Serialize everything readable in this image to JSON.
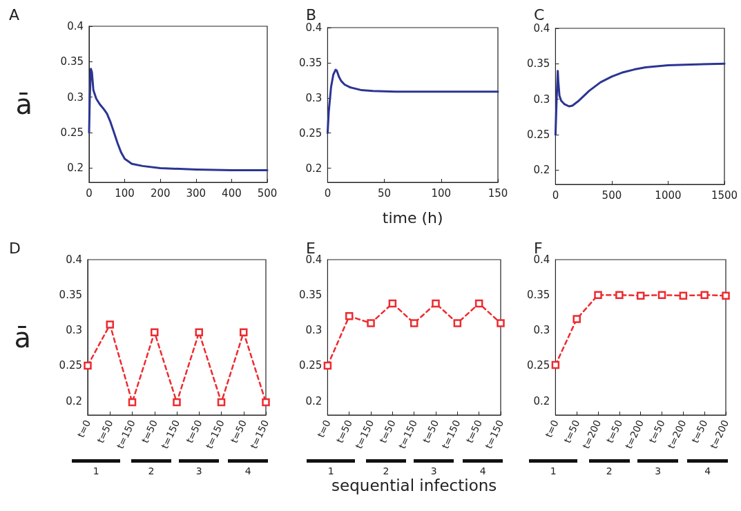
{
  "chart_data": [
    {
      "type": "line",
      "title": "A",
      "ylabel": "ā",
      "x": [
        0,
        2,
        5,
        8,
        12,
        20,
        30,
        40,
        50,
        60,
        70,
        80,
        90,
        100,
        120,
        150,
        200,
        300,
        400,
        500
      ],
      "series": [
        {
          "color": "#2b3593",
          "values": [
            0.25,
            0.3,
            0.34,
            0.335,
            0.31,
            0.298,
            0.29,
            0.284,
            0.277,
            0.265,
            0.25,
            0.235,
            0.222,
            0.213,
            0.206,
            0.203,
            0.2,
            0.198,
            0.197,
            0.197
          ]
        }
      ],
      "xlim": [
        0,
        500
      ],
      "xticks": [
        0,
        100,
        200,
        300,
        400,
        500
      ],
      "ylim": [
        0.18,
        0.4
      ],
      "yticks": [
        0.2,
        0.25,
        0.3,
        0.35,
        0.4
      ],
      "grid": false,
      "marker": "none",
      "line_style": "solid"
    },
    {
      "type": "line",
      "title": "B",
      "xlabel": "time (h)",
      "x": [
        0,
        1,
        3,
        5,
        7,
        8,
        10,
        12,
        15,
        20,
        30,
        40,
        60,
        100,
        150
      ],
      "series": [
        {
          "color": "#2b3593",
          "values": [
            0.25,
            0.28,
            0.315,
            0.333,
            0.34,
            0.339,
            0.33,
            0.324,
            0.319,
            0.315,
            0.311,
            0.31,
            0.309,
            0.309,
            0.309
          ]
        }
      ],
      "xlim": [
        0,
        150
      ],
      "xticks": [
        0,
        50,
        100,
        150
      ],
      "ylim": [
        0.18,
        0.4
      ],
      "yticks": [
        0.2,
        0.25,
        0.3,
        0.35,
        0.4
      ],
      "grid": false,
      "marker": "none",
      "line_style": "solid"
    },
    {
      "type": "line",
      "title": "C",
      "x": [
        0,
        10,
        20,
        25,
        35,
        50,
        80,
        120,
        150,
        200,
        300,
        400,
        500,
        600,
        700,
        800,
        1000,
        1200,
        1500
      ],
      "series": [
        {
          "color": "#2b3593",
          "values": [
            0.25,
            0.3,
            0.34,
            0.325,
            0.305,
            0.298,
            0.293,
            0.29,
            0.291,
            0.297,
            0.312,
            0.324,
            0.332,
            0.338,
            0.342,
            0.345,
            0.348,
            0.349,
            0.35
          ]
        }
      ],
      "xlim": [
        0,
        1500
      ],
      "xticks": [
        0,
        500,
        1000,
        1500
      ],
      "ylim": [
        0.18,
        0.4
      ],
      "yticks": [
        0.2,
        0.25,
        0.3,
        0.35,
        0.4
      ],
      "grid": false,
      "marker": "none",
      "line_style": "solid"
    },
    {
      "type": "line",
      "title": "D",
      "ylabel": "ā",
      "categories": [
        "t=0",
        "t=50",
        "t=150",
        "t=50",
        "t=150",
        "t=50",
        "t=150",
        "t=50",
        "t=150"
      ],
      "series": [
        {
          "color": "#ee2a2f",
          "values": [
            0.25,
            0.308,
            0.198,
            0.297,
            0.198,
            0.297,
            0.198,
            0.297,
            0.198
          ]
        }
      ],
      "ylim": [
        0.18,
        0.4
      ],
      "yticks": [
        0.2,
        0.25,
        0.3,
        0.35,
        0.4
      ],
      "grid": false,
      "marker": "square",
      "line_style": "dashed",
      "annotations": [
        "1",
        "2",
        "3",
        "4"
      ]
    },
    {
      "type": "line",
      "title": "E",
      "xlabel": "sequential infections",
      "categories": [
        "t=0",
        "t=50",
        "t=150",
        "t=50",
        "t=150",
        "t=50",
        "t=150",
        "t=50",
        "t=150"
      ],
      "series": [
        {
          "color": "#ee2a2f",
          "values": [
            0.25,
            0.32,
            0.31,
            0.338,
            0.31,
            0.338,
            0.31,
            0.338,
            0.31
          ]
        }
      ],
      "ylim": [
        0.18,
        0.4
      ],
      "yticks": [
        0.2,
        0.25,
        0.3,
        0.35,
        0.4
      ],
      "grid": false,
      "marker": "square",
      "line_style": "dashed",
      "annotations": [
        "1",
        "2",
        "3",
        "4"
      ]
    },
    {
      "type": "line",
      "title": "F",
      "categories": [
        "t=0",
        "t=50",
        "t=200",
        "t=50",
        "t=200",
        "t=50",
        "t=200",
        "t=50",
        "t=200"
      ],
      "series": [
        {
          "color": "#ee2a2f",
          "values": [
            0.251,
            0.316,
            0.35,
            0.35,
            0.349,
            0.35,
            0.349,
            0.35,
            0.349
          ]
        }
      ],
      "ylim": [
        0.18,
        0.4
      ],
      "yticks": [
        0.2,
        0.25,
        0.3,
        0.35,
        0.4
      ],
      "grid": false,
      "marker": "square",
      "line_style": "dashed",
      "annotations": [
        "1",
        "2",
        "3",
        "4"
      ]
    }
  ]
}
